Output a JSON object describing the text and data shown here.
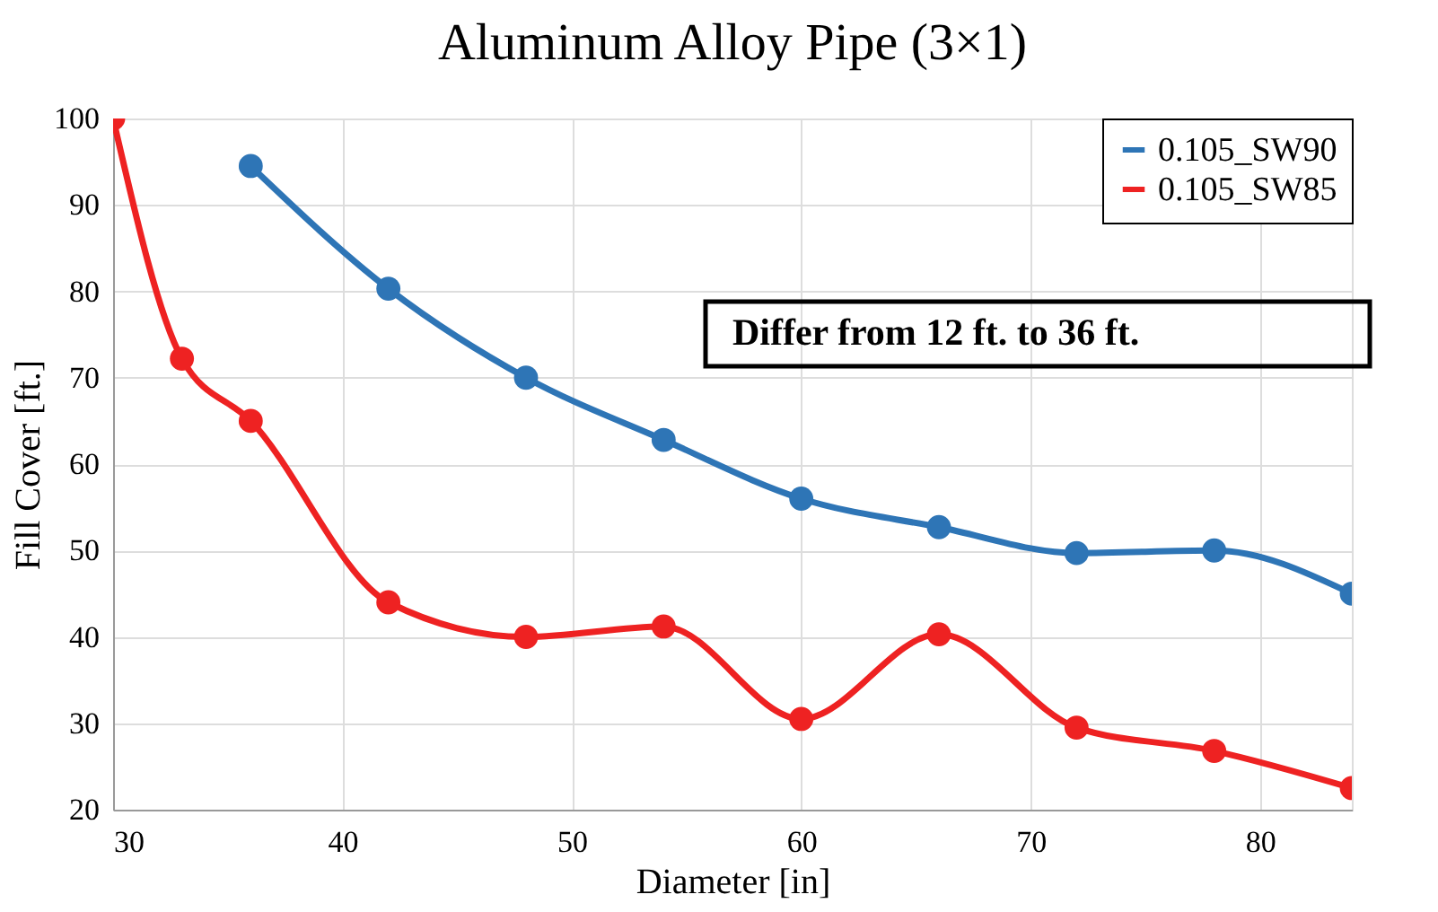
{
  "chart_data": {
    "type": "line",
    "title": "Aluminum Alloy Pipe (3×1)",
    "xlabel": "Diameter [in]",
    "ylabel": "Fill Cover [ft.]",
    "xlim": [
      30,
      84
    ],
    "xticks": [
      30,
      40,
      50,
      60,
      70,
      80
    ],
    "ylim": [
      20,
      100
    ],
    "yticks": [
      20,
      30,
      40,
      50,
      60,
      70,
      80,
      90,
      100
    ],
    "grid": true,
    "legend": "top right",
    "marker": "circle",
    "line_style": "solid",
    "annotations": [
      "Differ from 12 ft. to 36 ft."
    ],
    "series": [
      {
        "name": "0.105_SW90",
        "color": "#2e75b6",
        "x": [
          36,
          42,
          48,
          54,
          60,
          66,
          72,
          78,
          84
        ],
        "values": [
          94.5,
          80.3,
          70,
          62.8,
          56,
          52.7,
          49.7,
          50,
          45
        ]
      },
      {
        "name": "0.105_SW85",
        "color": "#ee2222",
        "x": [
          30,
          33,
          36,
          42,
          48,
          54,
          60,
          66,
          72,
          78,
          84
        ],
        "values": [
          100,
          72.2,
          65,
          44,
          40,
          41.2,
          30.5,
          40.3,
          29.5,
          26.8,
          22.5
        ]
      }
    ]
  }
}
